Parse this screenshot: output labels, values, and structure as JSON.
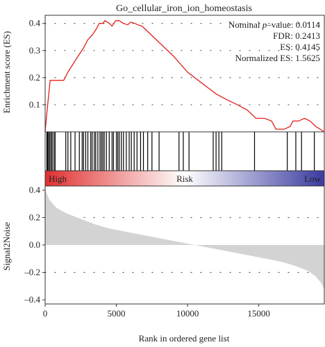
{
  "chart_data": [
    {
      "type": "line",
      "title": "Go_cellular_iron_ion_homeostasis",
      "ylabel": "Enrichment score (ES)",
      "xlim": [
        0,
        19600
      ],
      "ylim": [
        0,
        0.43
      ],
      "yticks": [
        "0.1",
        "0.2",
        "0.3",
        "0.4"
      ],
      "ytick_values": [
        0.1,
        0.2,
        0.3,
        0.4
      ],
      "grid": "dotted",
      "line_color": "#e0201b",
      "annotation": {
        "pvalue_label": "Nominal ",
        "pvalue_symbol": "p",
        "pvalue_text": "–value: 0.0114",
        "fdr": "FDR: 0.2413",
        "es": "ES: 0.4145",
        "nes": "Normalized ES: 1.5625"
      },
      "series": [
        {
          "x": [
            0,
            100,
            350,
            700,
            1300,
            1600,
            2200,
            2700,
            3000,
            3350,
            3600,
            3800,
            4050,
            4200,
            4500,
            4700,
            4950,
            5200,
            5500,
            5800,
            6000,
            6300,
            6500,
            6800,
            7200,
            8000,
            9000,
            10000,
            11000,
            12000,
            12700,
            13500,
            14200,
            14800,
            15400,
            15900,
            16200,
            16800,
            17200,
            17400,
            17800,
            18200,
            18600,
            19000,
            19600
          ],
          "y": [
            0.0,
            0.06,
            0.19,
            0.19,
            0.19,
            0.22,
            0.27,
            0.31,
            0.34,
            0.36,
            0.38,
            0.4,
            0.4,
            0.41,
            0.4,
            0.39,
            0.41,
            0.41,
            0.4,
            0.395,
            0.405,
            0.4,
            0.395,
            0.39,
            0.37,
            0.33,
            0.28,
            0.22,
            0.18,
            0.14,
            0.12,
            0.1,
            0.08,
            0.05,
            0.05,
            0.04,
            0.01,
            0.01,
            0.02,
            0.04,
            0.04,
            0.05,
            0.04,
            0.02,
            0.0
          ]
        }
      ]
    },
    {
      "type": "barcode",
      "xlim": [
        0,
        19600
      ],
      "hits": [
        120,
        180,
        250,
        330,
        420,
        500,
        620,
        700,
        1450,
        1600,
        1800,
        2100,
        2400,
        2600,
        2700,
        2850,
        3000,
        3200,
        3300,
        3450,
        3550,
        3700,
        3850,
        3950,
        4050,
        4150,
        4300,
        4500,
        4700,
        4800,
        5000,
        5100,
        5200,
        5350,
        5500,
        5700,
        5900,
        6050,
        6250,
        6450,
        6700,
        6900,
        7200,
        7500,
        8000,
        9400,
        9700,
        10100,
        11800,
        12000,
        12200,
        12400,
        14700,
        17000,
        17600,
        18000,
        18900
      ]
    },
    {
      "type": "gradient",
      "labels": {
        "high": "High",
        "middle": "Risk",
        "low": "Low"
      },
      "colors": {
        "high": "#e03030",
        "middle": "#ffffff",
        "low": "#3a3aa0"
      }
    },
    {
      "type": "area",
      "xlabel": "Rank in ordered gene list",
      "ylabel": "Signal2Noise",
      "xlim": [
        0,
        19600
      ],
      "ylim": [
        -0.43,
        0.43
      ],
      "xticks": [
        "0",
        "5000",
        "10000",
        "15000"
      ],
      "xtick_values": [
        0,
        5000,
        10000,
        15000
      ],
      "yticks": [
        "0.4",
        "0.2",
        "0.0",
        "–0.2",
        "–0.4"
      ],
      "ytick_values": [
        0.4,
        0.2,
        0.0,
        -0.2,
        -0.4
      ],
      "grid": "dotted",
      "fill_color": "#d3d3d3",
      "series": [
        {
          "x": [
            0,
            300,
            800,
            1500,
            2500,
            3500,
            4500,
            5500,
            6500,
            7500,
            8500,
            9500,
            10500,
            11000,
            11500,
            12500,
            13500,
            14500,
            15500,
            16500,
            17500,
            18500,
            19000,
            19400,
            19600
          ],
          "y": [
            0.4,
            0.33,
            0.27,
            0.23,
            0.19,
            0.15,
            0.12,
            0.1,
            0.08,
            0.06,
            0.04,
            0.02,
            0.0,
            -0.01,
            -0.02,
            -0.04,
            -0.06,
            -0.08,
            -0.1,
            -0.12,
            -0.15,
            -0.19,
            -0.23,
            -0.28,
            -0.33
          ]
        }
      ]
    }
  ]
}
